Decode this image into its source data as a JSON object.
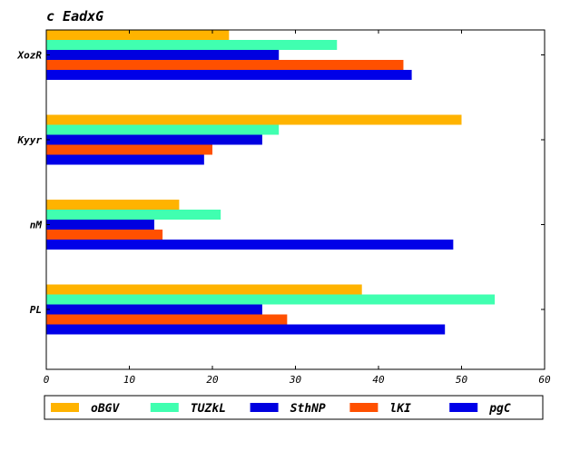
{
  "chart_data": {
    "type": "bar",
    "orientation": "horizontal",
    "title": "c EadxG",
    "categories": [
      "XozR",
      "Kyyr",
      "nM",
      "PL"
    ],
    "series": [
      {
        "name": "oBGV",
        "color": "#ffb300",
        "values": [
          22,
          50,
          16,
          38
        ]
      },
      {
        "name": "TUZkL",
        "color": "#40ffb0",
        "values": [
          35,
          28,
          21,
          54
        ]
      },
      {
        "name": "SthNP",
        "color": "#0000e0",
        "values": [
          28,
          26,
          13,
          26
        ]
      },
      {
        "name": "lKI",
        "color": "#ff5000",
        "values": [
          43,
          20,
          14,
          29
        ]
      },
      {
        "name": "pgC",
        "color": "#0000e8",
        "values": [
          44,
          19,
          49,
          48
        ]
      }
    ],
    "xlim": [
      0,
      60
    ],
    "xticks": [
      0,
      10,
      20,
      30,
      40,
      50,
      60
    ],
    "grid": false,
    "legend_position": "bottom"
  }
}
